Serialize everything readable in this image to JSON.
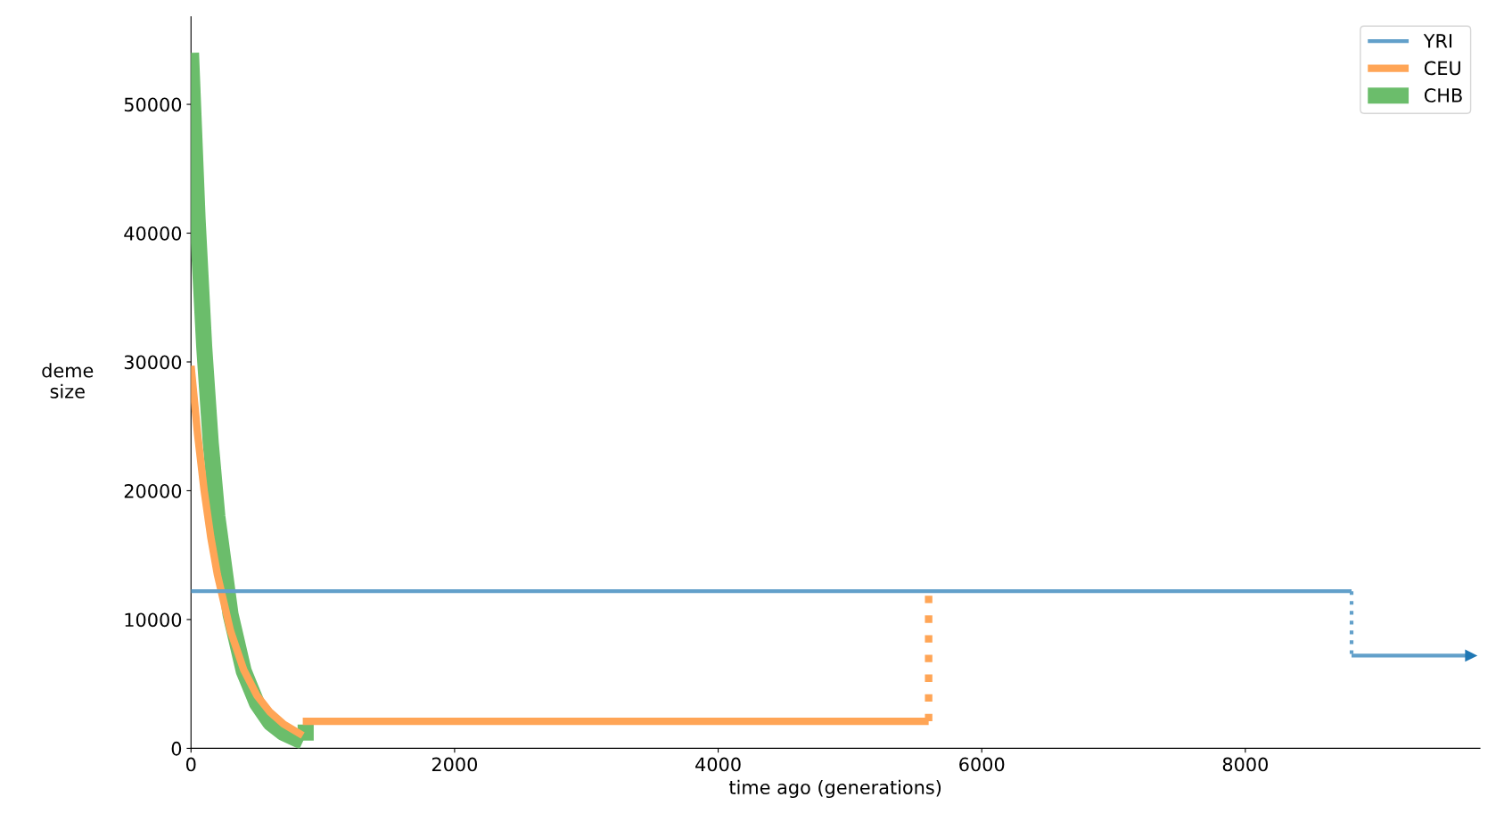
{
  "chart_data": {
    "type": "line",
    "xlabel": "time ago (generations)",
    "ylabel": "deme\nsize",
    "xlim": [
      0,
      9780
    ],
    "ylim": [
      0,
      56800
    ],
    "xticks": [
      0,
      2000,
      4000,
      6000,
      8000
    ],
    "yticks": [
      0,
      10000,
      20000,
      30000,
      40000,
      50000
    ],
    "grid": false,
    "legend": "top right",
    "series": [
      {
        "name": "YRI",
        "color": "#62a0ca",
        "x": [
          0,
          8806
        ],
        "values": [
          12200,
          12200
        ]
      },
      {
        "name": "CEU",
        "color": "#ffa556",
        "x": [
          0,
          50,
          100,
          150,
          200,
          300,
          400,
          500,
          600,
          700,
          848
        ],
        "values": [
          29700,
          24400,
          20000,
          16400,
          13500,
          9100,
          6100,
          4100,
          2800,
          1900,
          1000
        ]
      },
      {
        "name": "CHB",
        "color": "#6bbd6b",
        "x": [
          0,
          50,
          100,
          150,
          200,
          300,
          400,
          500,
          600,
          700,
          848
        ],
        "values": [
          54000,
          41100,
          31200,
          23700,
          18000,
          10400,
          6000,
          3500,
          2000,
          1200,
          500
        ]
      },
      {
        "color": "#62a0ca",
        "x": [
          8806,
          9700
        ],
        "values": [
          7200,
          7200
        ]
      },
      {
        "color": "#62a0ca",
        "x": [
          8806,
          8806
        ],
        "values": [
          12200,
          7200
        ],
        "line_style": "dotted"
      },
      {
        "color": "#ffa556",
        "x": [
          848,
          5597
        ],
        "values": [
          2100,
          2100
        ]
      },
      {
        "color": "#ffa556",
        "x": [
          5597,
          5597
        ],
        "values": [
          2100,
          12200
        ],
        "line_style": "dotted"
      },
      {
        "color": "#6bbd6b",
        "x": [
          870,
          870
        ],
        "values": [
          600,
          1900
        ],
        "line_style": "dotted"
      }
    ]
  }
}
